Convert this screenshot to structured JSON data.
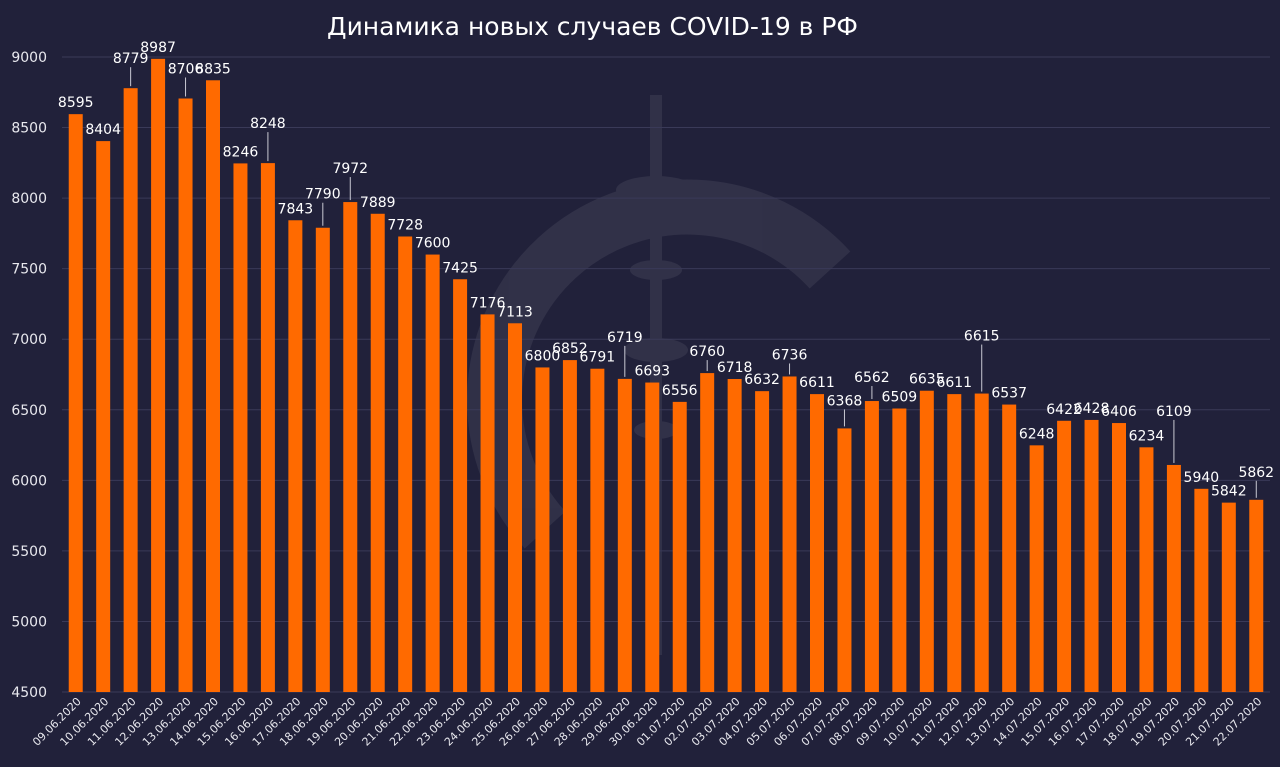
{
  "chart_data": {
    "type": "bar",
    "title": "Динамика новых случаев COVID-19 в РФ",
    "xlabel": "",
    "ylabel": "",
    "ylim": [
      4500,
      9000
    ],
    "yticks": [
      4500,
      5000,
      5500,
      6000,
      6500,
      7000,
      7500,
      8000,
      8500,
      9000
    ],
    "grid": true,
    "bar_color": "#ff6a00",
    "categories": [
      "09.06.2020",
      "10.06.2020",
      "11.06.2020",
      "12.06.2020",
      "13.06.2020",
      "14.06.2020",
      "15.06.2020",
      "16.06.2020",
      "17.06.2020",
      "18.06.2020",
      "19.06.2020",
      "20.06.2020",
      "21.06.2020",
      "22.06.2020",
      "23.06.2020",
      "24.06.2020",
      "25.06.2020",
      "26.06.2020",
      "27.06.2020",
      "28.06.2020",
      "29.06.2020",
      "30.06.2020",
      "01.07.2020",
      "02.07.2020",
      "03.07.2020",
      "04.07.2020",
      "05.07.2020",
      "06.07.2020",
      "07.07.2020",
      "08.07.2020",
      "09.07.2020",
      "10.07.2020",
      "11.07.2020",
      "12.07.2020",
      "13.07.2020",
      "14.07.2020",
      "15.07.2020",
      "16.07.2020",
      "17.07.2020",
      "18.07.2020",
      "19.07.2020",
      "20.07.2020",
      "21.07.2020",
      "22.07.2020"
    ],
    "values": [
      8595,
      8404,
      8779,
      8987,
      8706,
      8835,
      8246,
      8248,
      7843,
      7790,
      7972,
      7889,
      7728,
      7600,
      7425,
      7176,
      7113,
      6800,
      6852,
      6791,
      6719,
      6693,
      6556,
      6760,
      6718,
      6632,
      6736,
      6611,
      6368,
      6562,
      6509,
      6635,
      6611,
      6615,
      6537,
      6248,
      6422,
      6428,
      6406,
      6234,
      6109,
      5940,
      5842,
      5862
    ]
  }
}
